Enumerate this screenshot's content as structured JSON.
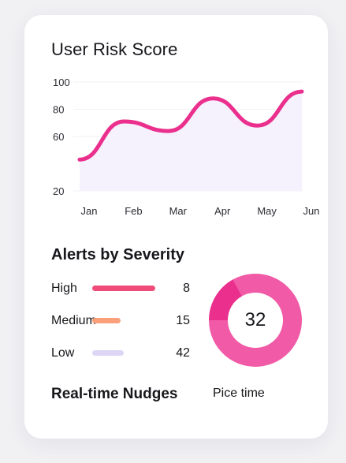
{
  "risk_card": {
    "title": "User Risk Score"
  },
  "chart_data": {
    "type": "line",
    "categories": [
      "Jan",
      "Feb",
      "Mar",
      "Apr",
      "May",
      "Jun"
    ],
    "values": [
      43,
      71,
      64,
      88,
      68,
      93
    ],
    "y_ticks": [
      20,
      60,
      80,
      100
    ],
    "ylim": [
      20,
      100
    ],
    "grid": true,
    "line_color": "#ea2f8d",
    "fill_color": "#f5f1fd"
  },
  "alerts": {
    "title": "Alerts by Severity",
    "items": [
      {
        "label": "High",
        "count": "8",
        "level": 1.0,
        "color": "#f04c7a"
      },
      {
        "label": "Medium",
        "count": "15",
        "level": 0.45,
        "color": "#f9a07b"
      },
      {
        "label": "Low",
        "count": "42",
        "level": 0.5,
        "color": "#ddd6f5"
      }
    ],
    "donut": {
      "value": "32",
      "segments": [
        {
          "fraction": 0.17,
          "color": "#ea2f8d"
        },
        {
          "fraction": 0.83,
          "color": "#f15aa6"
        }
      ],
      "dark_segment_start_angle": 270
    }
  },
  "nudges": {
    "title": "Real-time Nudges",
    "link": "Pice time"
  }
}
